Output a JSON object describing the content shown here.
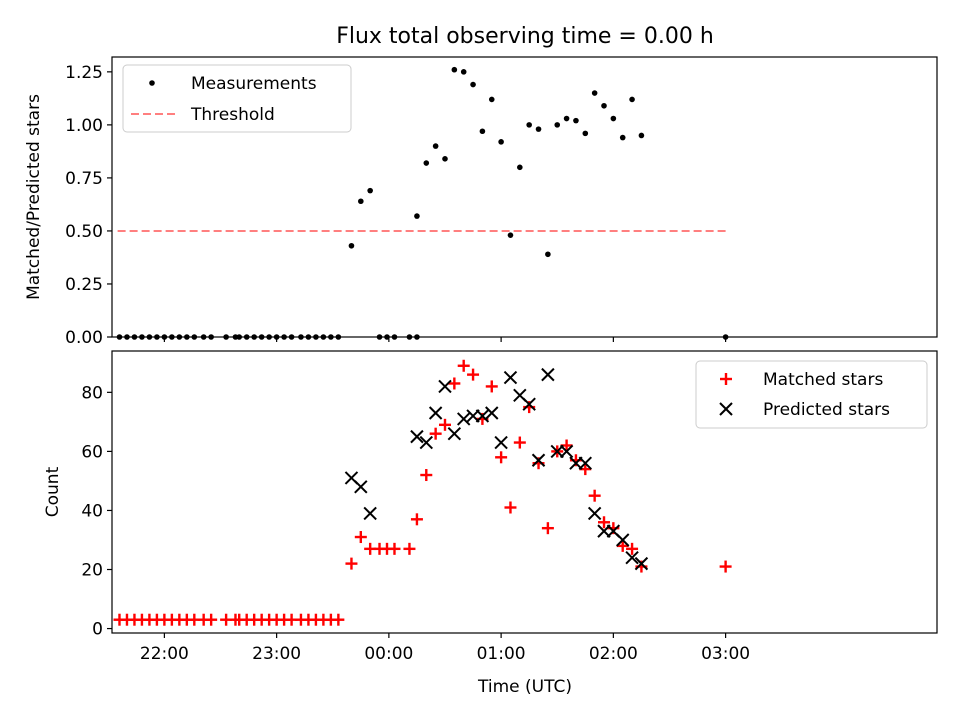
{
  "figure": {
    "title": "Flux total observing time = 0.00 h",
    "xlabel": "Time (UTC)"
  },
  "chart_data": [
    {
      "type": "scatter",
      "title": "Flux total observing time = 0.00 h",
      "ylabel": "Matched/Predicted stars",
      "xlim": [
        -148,
        293
      ],
      "ylim": [
        0,
        1.32
      ],
      "x_ticks": [
        {
          "value": -120,
          "label": "22:00"
        },
        {
          "value": -60,
          "label": "23:00"
        },
        {
          "value": 0,
          "label": "00:00"
        },
        {
          "value": 60,
          "label": "01:00"
        },
        {
          "value": 120,
          "label": "02:00"
        },
        {
          "value": 180,
          "label": "03:00"
        }
      ],
      "y_ticks": [
        {
          "value": 0,
          "label": "0.00"
        },
        {
          "value": 0.25,
          "label": "0.25"
        },
        {
          "value": 0.5,
          "label": "0.50"
        },
        {
          "value": 0.75,
          "label": "0.75"
        },
        {
          "value": 1.0,
          "label": "1.00"
        },
        {
          "value": 1.25,
          "label": "1.25"
        }
      ],
      "legend": {
        "position": "top-left",
        "entries": [
          "Measurements",
          "Threshold"
        ]
      },
      "series": [
        {
          "name": "Measurements",
          "kind": "scatter",
          "color": "#000000",
          "points": [
            [
              -144,
              0
            ],
            [
              -140,
              0
            ],
            [
              -136,
              0
            ],
            [
              -132,
              0
            ],
            [
              -128,
              0
            ],
            [
              -124,
              0
            ],
            [
              -120,
              0
            ],
            [
              -116,
              0
            ],
            [
              -112,
              0
            ],
            [
              -108,
              0
            ],
            [
              -104,
              0
            ],
            [
              -99,
              0
            ],
            [
              -95,
              0
            ],
            [
              -87,
              0
            ],
            [
              -82,
              0
            ],
            [
              -80,
              0
            ],
            [
              -76,
              0
            ],
            [
              -72,
              0
            ],
            [
              -68,
              0
            ],
            [
              -64,
              0
            ],
            [
              -60,
              0
            ],
            [
              -56,
              0
            ],
            [
              -52,
              0
            ],
            [
              -47,
              0
            ],
            [
              -43,
              0
            ],
            [
              -39,
              0
            ],
            [
              -35,
              0
            ],
            [
              -31,
              0
            ],
            [
              -27,
              0
            ],
            [
              -20,
              0.43
            ],
            [
              -15,
              0.64
            ],
            [
              -10,
              0.69
            ],
            [
              -5,
              0
            ],
            [
              -1,
              0
            ],
            [
              3,
              0
            ],
            [
              11,
              0
            ],
            [
              15,
              0
            ],
            [
              15,
              0.57
            ],
            [
              20,
              0.82
            ],
            [
              25,
              0.9
            ],
            [
              30,
              0.84
            ],
            [
              35,
              1.26
            ],
            [
              40,
              1.25
            ],
            [
              45,
              1.19
            ],
            [
              50,
              0.97
            ],
            [
              55,
              1.12
            ],
            [
              60,
              0.92
            ],
            [
              65,
              0.48
            ],
            [
              70,
              0.8
            ],
            [
              75,
              1.0
            ],
            [
              80,
              0.98
            ],
            [
              85,
              0.39
            ],
            [
              90,
              1.0
            ],
            [
              95,
              1.03
            ],
            [
              100,
              1.02
            ],
            [
              105,
              0.96
            ],
            [
              110,
              1.15
            ],
            [
              115,
              1.09
            ],
            [
              120,
              1.03
            ],
            [
              125,
              0.94
            ],
            [
              130,
              1.12
            ],
            [
              135,
              0.95
            ],
            [
              180,
              0
            ]
          ]
        },
        {
          "name": "Threshold",
          "kind": "line",
          "color": "#ff7f7f",
          "dash": "dashed",
          "points": [
            [
              -145,
              0.5
            ],
            [
              180,
              0.5
            ]
          ]
        }
      ]
    },
    {
      "type": "scatter",
      "ylabel": "Count",
      "xlabel": "Time (UTC)",
      "xlim": [
        -148,
        293
      ],
      "ylim": [
        -1.5,
        94
      ],
      "x_ticks": [
        {
          "value": -120,
          "label": "22:00"
        },
        {
          "value": -60,
          "label": "23:00"
        },
        {
          "value": 0,
          "label": "00:00"
        },
        {
          "value": 60,
          "label": "01:00"
        },
        {
          "value": 120,
          "label": "02:00"
        },
        {
          "value": 180,
          "label": "03:00"
        }
      ],
      "y_ticks": [
        {
          "value": 0,
          "label": "0"
        },
        {
          "value": 20,
          "label": "20"
        },
        {
          "value": 40,
          "label": "40"
        },
        {
          "value": 60,
          "label": "60"
        },
        {
          "value": 80,
          "label": "80"
        }
      ],
      "legend": {
        "position": "top-right",
        "entries": [
          "Matched stars",
          "Predicted stars"
        ]
      },
      "series": [
        {
          "name": "Matched stars",
          "kind": "plus",
          "color": "#ff0000",
          "points": [
            [
              -144,
              3
            ],
            [
              -140,
              3
            ],
            [
              -136,
              3
            ],
            [
              -132,
              3
            ],
            [
              -128,
              3
            ],
            [
              -124,
              3
            ],
            [
              -120,
              3
            ],
            [
              -116,
              3
            ],
            [
              -112,
              3
            ],
            [
              -108,
              3
            ],
            [
              -104,
              3
            ],
            [
              -99,
              3
            ],
            [
              -95,
              3
            ],
            [
              -87,
              3
            ],
            [
              -82,
              3
            ],
            [
              -80,
              3
            ],
            [
              -76,
              3
            ],
            [
              -72,
              3
            ],
            [
              -68,
              3
            ],
            [
              -64,
              3
            ],
            [
              -60,
              3
            ],
            [
              -56,
              3
            ],
            [
              -52,
              3
            ],
            [
              -47,
              3
            ],
            [
              -43,
              3
            ],
            [
              -39,
              3
            ],
            [
              -35,
              3
            ],
            [
              -31,
              3
            ],
            [
              -27,
              3
            ],
            [
              -20,
              22
            ],
            [
              -15,
              31
            ],
            [
              -10,
              27
            ],
            [
              -5,
              27
            ],
            [
              -1,
              27
            ],
            [
              3,
              27
            ],
            [
              11,
              27
            ],
            [
              15,
              37
            ],
            [
              20,
              52
            ],
            [
              25,
              66
            ],
            [
              30,
              69
            ],
            [
              35,
              83
            ],
            [
              40,
              89
            ],
            [
              45,
              86
            ],
            [
              50,
              71
            ],
            [
              55,
              82
            ],
            [
              60,
              58
            ],
            [
              65,
              41
            ],
            [
              70,
              63
            ],
            [
              75,
              75
            ],
            [
              80,
              56
            ],
            [
              85,
              34
            ],
            [
              90,
              60
            ],
            [
              95,
              62
            ],
            [
              100,
              57
            ],
            [
              105,
              54
            ],
            [
              110,
              45
            ],
            [
              115,
              36
            ],
            [
              120,
              34
            ],
            [
              125,
              28
            ],
            [
              130,
              27
            ],
            [
              135,
              21
            ],
            [
              180,
              21
            ]
          ]
        },
        {
          "name": "Predicted stars",
          "kind": "x",
          "color": "#000000",
          "points": [
            [
              -20,
              51
            ],
            [
              -15,
              48
            ],
            [
              -10,
              39
            ],
            [
              15,
              65
            ],
            [
              20,
              63
            ],
            [
              25,
              73
            ],
            [
              30,
              82
            ],
            [
              35,
              66
            ],
            [
              40,
              71
            ],
            [
              45,
              72
            ],
            [
              50,
              72
            ],
            [
              55,
              73
            ],
            [
              60,
              63
            ],
            [
              65,
              85
            ],
            [
              70,
              79
            ],
            [
              75,
              76
            ],
            [
              80,
              57
            ],
            [
              85,
              86
            ],
            [
              90,
              60
            ],
            [
              95,
              60
            ],
            [
              100,
              56
            ],
            [
              105,
              56
            ],
            [
              110,
              39
            ],
            [
              115,
              33
            ],
            [
              120,
              33
            ],
            [
              125,
              30
            ],
            [
              130,
              24
            ],
            [
              135,
              22
            ]
          ]
        }
      ]
    }
  ]
}
